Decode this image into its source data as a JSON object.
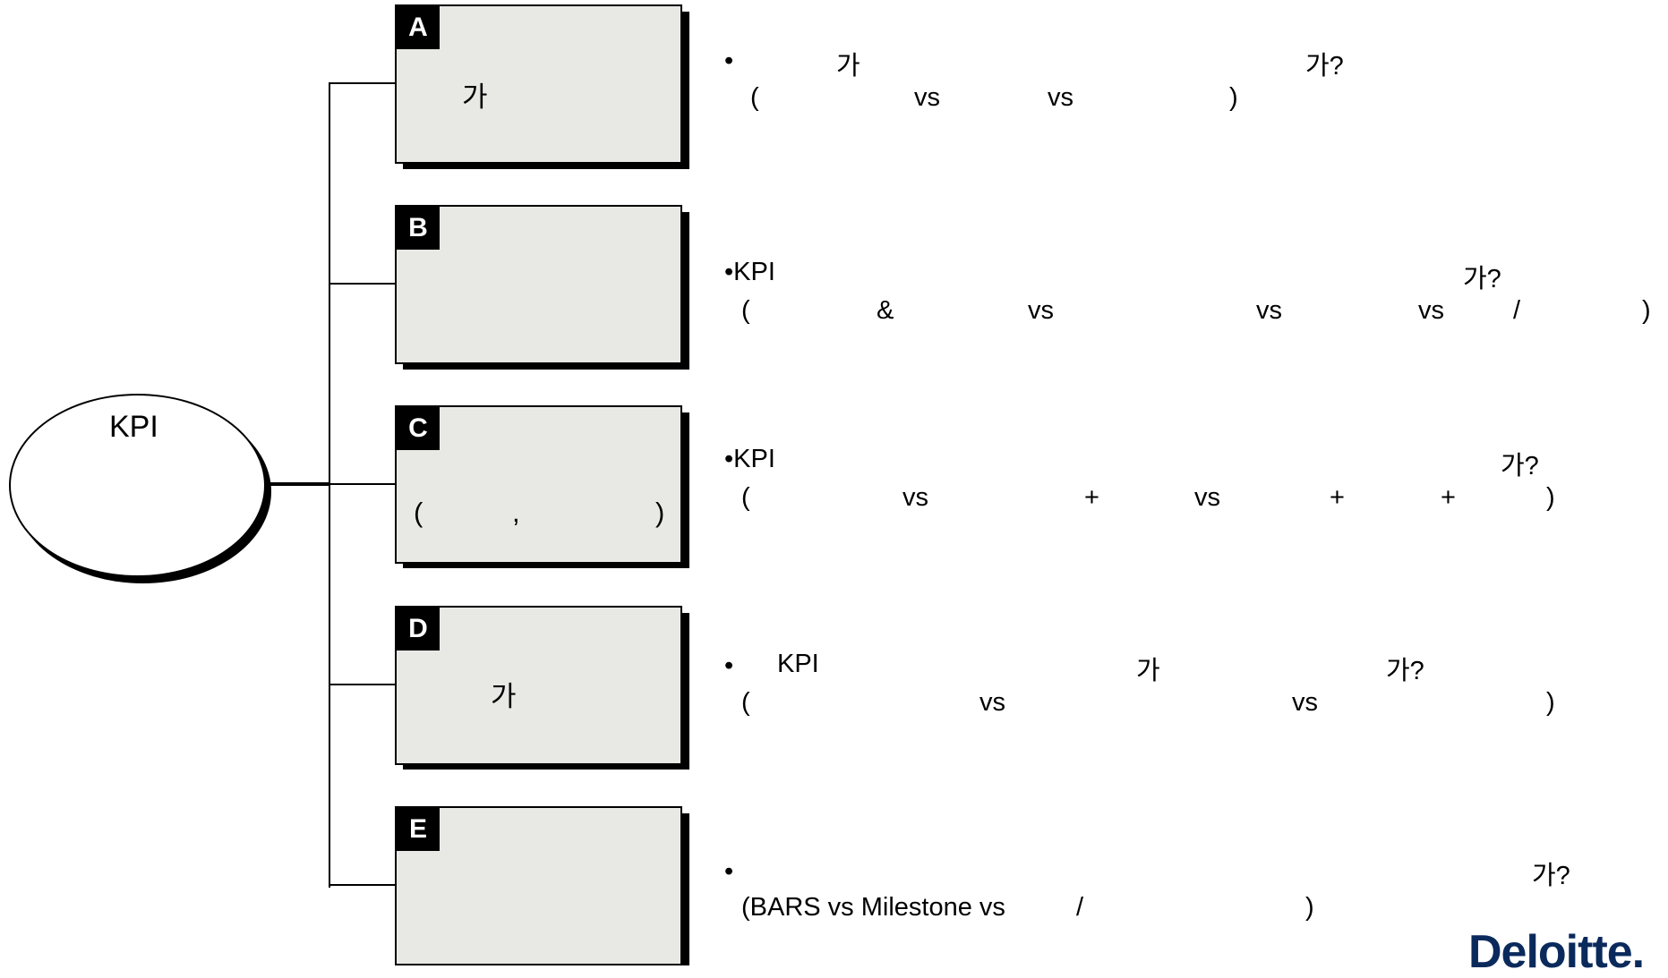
{
  "center": {
    "label": "KPI"
  },
  "boxes": [
    {
      "letter": "A",
      "texts": [
        "가"
      ]
    },
    {
      "letter": "B",
      "texts": []
    },
    {
      "letter": "C",
      "texts": [
        "(",
        ",",
        ")"
      ]
    },
    {
      "letter": "D",
      "texts": [
        "가"
      ]
    },
    {
      "letter": "E",
      "texts": []
    }
  ],
  "rows": {
    "a1": [
      "•",
      "가",
      "가?"
    ],
    "a2": [
      "(",
      "vs",
      "vs",
      ")"
    ],
    "b1": [
      "•KPI",
      "가?"
    ],
    "b2": [
      "(",
      "&",
      "vs",
      "vs",
      "vs",
      "/",
      ")"
    ],
    "c1": [
      "•KPI",
      "가?"
    ],
    "c2": [
      "(",
      "vs",
      "+",
      "vs",
      "+",
      "+",
      ")"
    ],
    "d1": [
      "•",
      "KPI",
      "가",
      "가?"
    ],
    "d2": [
      "(",
      "vs",
      "vs",
      ")"
    ],
    "e1": [
      "•",
      "가?"
    ],
    "e2": [
      "(BARS vs Milestone vs",
      "/",
      ")"
    ]
  },
  "logo": "Deloitte."
}
